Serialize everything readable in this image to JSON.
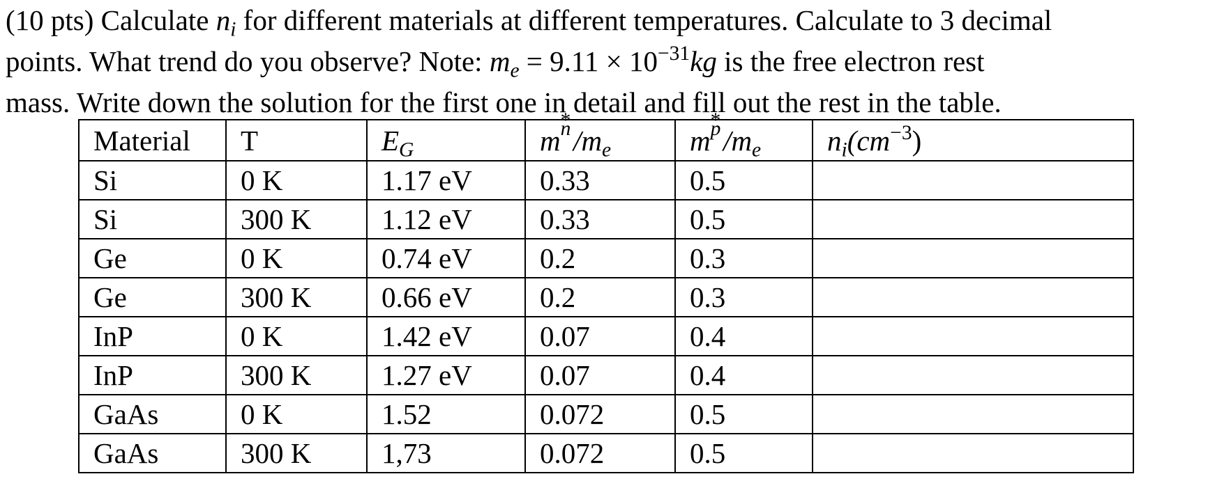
{
  "problem": {
    "line1_prefix": "(10 pts) Calculate ",
    "line1_ni_base": "n",
    "line1_ni_sub": "i",
    "line1_suffix": " for different materials at different temperatures. Calculate to 3 decimal",
    "line2_prefix": "points. What trend do you observe? Note: ",
    "line2_me_base": "m",
    "line2_me_sub": "e",
    "line2_equals": " = 9.11 × 10",
    "line2_exp": "−31",
    "line2_unit": "kg",
    "line2_suffix": " is the free electron rest",
    "line3": "mass. Write down the solution for the first one in detail and fill out the rest in the table."
  },
  "table": {
    "headers": {
      "material": "Material",
      "temperature": "T",
      "eg_base": "E",
      "eg_sub": "G",
      "mn_base": "m",
      "mn_sup": "*",
      "mn_sub": "n",
      "mn_denom": "/m",
      "mn_denom_sub": "e",
      "mp_base": "m",
      "mp_sup": "*",
      "mp_sub": "p",
      "mp_denom": "/m",
      "mp_denom_sub": "e",
      "ni_base": "n",
      "ni_sub": "i",
      "ni_unit_open": "(cm",
      "ni_unit_exp": "−3",
      "ni_unit_close": ")"
    },
    "rows": [
      {
        "material": "Si",
        "t": "0 K",
        "eg": "1.17 eV",
        "mn": "0.33",
        "mp": "0.5",
        "ni": ""
      },
      {
        "material": "Si",
        "t": "300 K",
        "eg": "1.12 eV",
        "mn": "0.33",
        "mp": "0.5",
        "ni": ""
      },
      {
        "material": "Ge",
        "t": "0 K",
        "eg": "0.74 eV",
        "mn": "0.2",
        "mp": "0.3",
        "ni": ""
      },
      {
        "material": "Ge",
        "t": "300 K",
        "eg": "0.66 eV",
        "mn": "0.2",
        "mp": "0.3",
        "ni": ""
      },
      {
        "material": "InP",
        "t": "0 K",
        "eg": "1.42 eV",
        "mn": "0.07",
        "mp": "0.4",
        "ni": ""
      },
      {
        "material": "InP",
        "t": "300 K",
        "eg": "1.27 eV",
        "mn": "0.07",
        "mp": "0.4",
        "ni": ""
      },
      {
        "material": "GaAs",
        "t": "0 K",
        "eg": "1.52",
        "mn": "0.072",
        "mp": "0.5",
        "ni": ""
      },
      {
        "material": "GaAs",
        "t": "300 K",
        "eg": "1,73",
        "mn": "0.072",
        "mp": "0.5",
        "ni": ""
      }
    ]
  }
}
